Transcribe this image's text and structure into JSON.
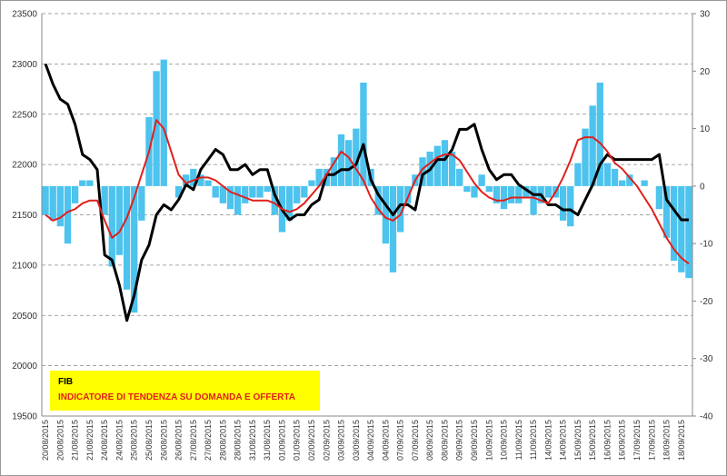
{
  "chart_data": {
    "type": "line",
    "categories": [
      "20/08/2015",
      null,
      "20/08/2015",
      null,
      "21/08/2015",
      null,
      "21/08/2015",
      null,
      "24/08/2015",
      null,
      "24/08/2015",
      null,
      "25/08/2015",
      null,
      "25/08/2015",
      null,
      "26/08/2015",
      null,
      "26/08/2015",
      null,
      "27/08/2015",
      null,
      "27/08/2015",
      null,
      "28/08/2015",
      null,
      "28/08/2015",
      null,
      "31/08/2015",
      null,
      "31/08/2015",
      null,
      "01/09/2015",
      null,
      "01/09/2015",
      null,
      "02/09/2015",
      null,
      "02/09/2015",
      null,
      "03/09/2015",
      null,
      "03/09/2015",
      null,
      "04/09/2015",
      null,
      "04/09/2015",
      null,
      "07/09/2015",
      null,
      "07/09/2015",
      null,
      "08/09/2015",
      null,
      "08/09/2015",
      null,
      "09/09/2015",
      null,
      "09/09/2015",
      null,
      "10/09/2015",
      null,
      "10/09/2015",
      null,
      "11/09/2015",
      null,
      "11/09/2015",
      null,
      "14/09/2015",
      null,
      "14/09/2015",
      null,
      "15/09/2015",
      null,
      "15/09/2015",
      null,
      "16/09/2015",
      null,
      "16/09/2015",
      null,
      "17/09/2015",
      null,
      "17/09/2015",
      null,
      "18/09/2015",
      null,
      "18/09/2015",
      null
    ],
    "series": [
      {
        "type": "bar",
        "color": "#4dc3ee",
        "axis": "y2",
        "values": [
          -5,
          -6,
          -7,
          -10,
          -3,
          1,
          1,
          0,
          -5,
          -14,
          -12,
          -18,
          -22,
          -6,
          12,
          20,
          22,
          0,
          -2,
          2,
          3,
          2,
          1,
          -2,
          -3,
          -4,
          -5,
          -3,
          -2,
          -2,
          -1,
          -5,
          -8,
          -6,
          -3,
          -2,
          1,
          3,
          3,
          5,
          9,
          8,
          10,
          18,
          3,
          -5,
          -10,
          -15,
          -8,
          -3,
          2,
          5,
          6,
          7,
          8,
          6,
          3,
          -1,
          -2,
          2,
          -1,
          -3,
          -4,
          -3,
          -3,
          -2,
          -5,
          -3,
          -2,
          -2,
          -6,
          -7,
          4,
          10,
          14,
          18,
          4,
          3,
          1,
          2,
          0,
          1,
          0,
          -4,
          -9,
          -13,
          -15,
          -16
        ]
      },
      {
        "name": "FIB",
        "color": "#000000",
        "values": [
          23000,
          22800,
          22650,
          22600,
          22400,
          22100,
          22050,
          21950,
          21100,
          21050,
          20800,
          20450,
          20700,
          21050,
          21200,
          21500,
          21600,
          21550,
          21650,
          21800,
          21750,
          21950,
          22050,
          22150,
          22100,
          21950,
          21950,
          22000,
          21900,
          21950,
          21950,
          21700,
          21550,
          21450,
          21500,
          21500,
          21600,
          21650,
          21900,
          21900,
          21950,
          21950,
          22000,
          22200,
          21850,
          21700,
          21600,
          21500,
          21600,
          21600,
          21550,
          21900,
          21950,
          22050,
          22050,
          22150,
          22350,
          22350,
          22400,
          22150,
          21950,
          21850,
          21900,
          21900,
          21800,
          21750,
          21700,
          21700,
          21600,
          21600,
          21550,
          21550,
          21500,
          21650,
          21800,
          22000,
          22100,
          22050,
          22050,
          22050,
          22050,
          22050,
          22050,
          22100,
          21650,
          21550,
          21450,
          21450
        ]
      },
      {
        "name": "INDICATORE DI TENDENZA  SU DOMANDA E OFFERTA",
        "color": "#e0201c",
        "axis": "y2",
        "values": [
          -5,
          -6,
          -5.5,
          -4.5,
          -4,
          -3,
          -2.5,
          -2.5,
          -6,
          -9,
          -8,
          -5.5,
          -2,
          2,
          6,
          11.5,
          10,
          6,
          2,
          0.5,
          1,
          1.5,
          1.5,
          1,
          0,
          -1,
          -1.5,
          -2,
          -2.5,
          -2.5,
          -2.5,
          -3,
          -4,
          -4.5,
          -4,
          -3,
          -1.5,
          0,
          2,
          4,
          6,
          5,
          3,
          1,
          -2,
          -4,
          -5.5,
          -6,
          -5,
          -2,
          1,
          3,
          4,
          5,
          5.5,
          5.5,
          4.5,
          2.5,
          0.5,
          -1,
          -2,
          -2.5,
          -2.5,
          -2,
          -2,
          -2,
          -2,
          -2.5,
          -3,
          -1,
          1.5,
          4.5,
          8,
          8.5,
          8.5,
          7.5,
          6,
          4,
          3,
          1.5,
          0,
          -2,
          -4,
          -6.5,
          -9,
          -11,
          -12.5,
          -13.5
        ]
      }
    ],
    "ylim": [
      19500,
      23500
    ],
    "yticks": [
      19500,
      20000,
      20500,
      21000,
      21500,
      22000,
      22500,
      23000,
      23500
    ],
    "y2lim": [
      -40,
      30
    ],
    "y2ticks": [
      -40,
      -30,
      -20,
      -10,
      0,
      10,
      20,
      30
    ],
    "grid": true
  }
}
